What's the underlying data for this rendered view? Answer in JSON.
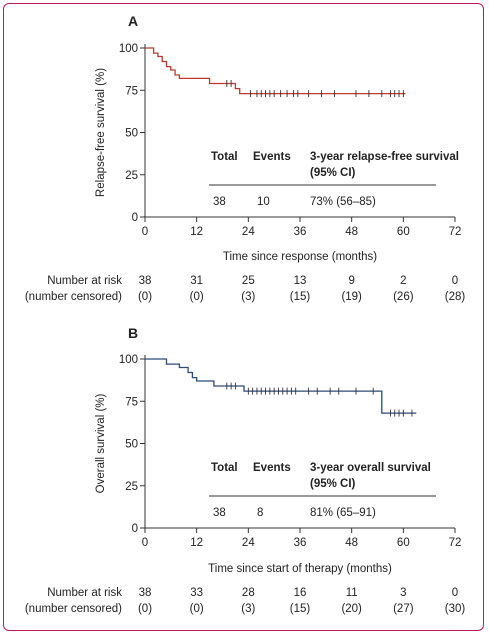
{
  "chart_data": [
    {
      "type": "line",
      "subtype": "kaplan-meier",
      "panel_label": "A",
      "ylabel": "Relapse-free survival (%)",
      "xlabel": "Time since response (months)",
      "x_ticks": [
        0,
        12,
        24,
        36,
        48,
        60,
        72
      ],
      "y_ticks": [
        0,
        25,
        50,
        75,
        100
      ],
      "xlim": [
        0,
        72
      ],
      "ylim": [
        0,
        100
      ],
      "line_color": "#c0392b",
      "series": [
        {
          "steps": [
            [
              0,
              100
            ],
            [
              2,
              100
            ],
            [
              2,
              97
            ],
            [
              3,
              97
            ],
            [
              3,
              95
            ],
            [
              4,
              95
            ],
            [
              4,
              92
            ],
            [
              5,
              92
            ],
            [
              5,
              89
            ],
            [
              6,
              89
            ],
            [
              6,
              87
            ],
            [
              7,
              87
            ],
            [
              7,
              84
            ],
            [
              8,
              84
            ],
            [
              8,
              82
            ],
            [
              15,
              82
            ],
            [
              15,
              79
            ],
            [
              21,
              79
            ],
            [
              21,
              76
            ],
            [
              22,
              76
            ],
            [
              22,
              73
            ],
            [
              60.5,
              73
            ]
          ],
          "censored": [
            19,
            20,
            24.5,
            26,
            27,
            28,
            29,
            30,
            31.5,
            33,
            34.5,
            35.5,
            38,
            41,
            44,
            49,
            52,
            55,
            57,
            58,
            59,
            60
          ]
        }
      ],
      "table": {
        "headers": [
          "Total",
          "Events",
          "3-year relapse-free survival"
        ],
        "header_sub": "(95% CI)",
        "values": [
          "38",
          "10",
          "73% (56–85)"
        ]
      },
      "risk_table": {
        "row1_label": "Number at risk",
        "row2_label": "(number censored)",
        "at_risk": [
          "38",
          "31",
          "25",
          "13",
          "9",
          "2",
          "0"
        ],
        "censored": [
          "(0)",
          "(0)",
          "(3)",
          "(15)",
          "(19)",
          "(26)",
          "(28)"
        ]
      }
    },
    {
      "type": "line",
      "subtype": "kaplan-meier",
      "panel_label": "B",
      "ylabel": "Overall survival (%)",
      "xlabel": "Time since start of therapy (months)",
      "x_ticks": [
        0,
        12,
        24,
        36,
        48,
        60,
        72
      ],
      "y_ticks": [
        0,
        25,
        50,
        75,
        100
      ],
      "xlim": [
        0,
        72
      ],
      "ylim": [
        0,
        100
      ],
      "line_color": "#2c4a7a",
      "series": [
        {
          "steps": [
            [
              0,
              100
            ],
            [
              5,
              100
            ],
            [
              5,
              97
            ],
            [
              8,
              97
            ],
            [
              8,
              95
            ],
            [
              10,
              95
            ],
            [
              10,
              92
            ],
            [
              11,
              92
            ],
            [
              11,
              89
            ],
            [
              12,
              89
            ],
            [
              12,
              87
            ],
            [
              16,
              87
            ],
            [
              16,
              84
            ],
            [
              23,
              84
            ],
            [
              23,
              81
            ],
            [
              55,
              81
            ],
            [
              55,
              68
            ],
            [
              63,
              68
            ]
          ],
          "censored": [
            19,
            20,
            21,
            24,
            25,
            26,
            27,
            28,
            29,
            30,
            31,
            32,
            33,
            34,
            35,
            38,
            40,
            43,
            45,
            49,
            53,
            57,
            58,
            59,
            60,
            62
          ]
        }
      ],
      "table": {
        "headers": [
          "Total",
          "Events",
          "3-year overall survival"
        ],
        "header_sub": "(95% CI)",
        "values": [
          "38",
          "8",
          "81% (65–91)"
        ]
      },
      "risk_table": {
        "row1_label": "Number at risk",
        "row2_label": "(number censored)",
        "at_risk": [
          "38",
          "33",
          "28",
          "16",
          "11",
          "3",
          "0"
        ],
        "censored": [
          "(0)",
          "(0)",
          "(3)",
          "(15)",
          "(20)",
          "(27)",
          "(30)"
        ]
      }
    }
  ]
}
